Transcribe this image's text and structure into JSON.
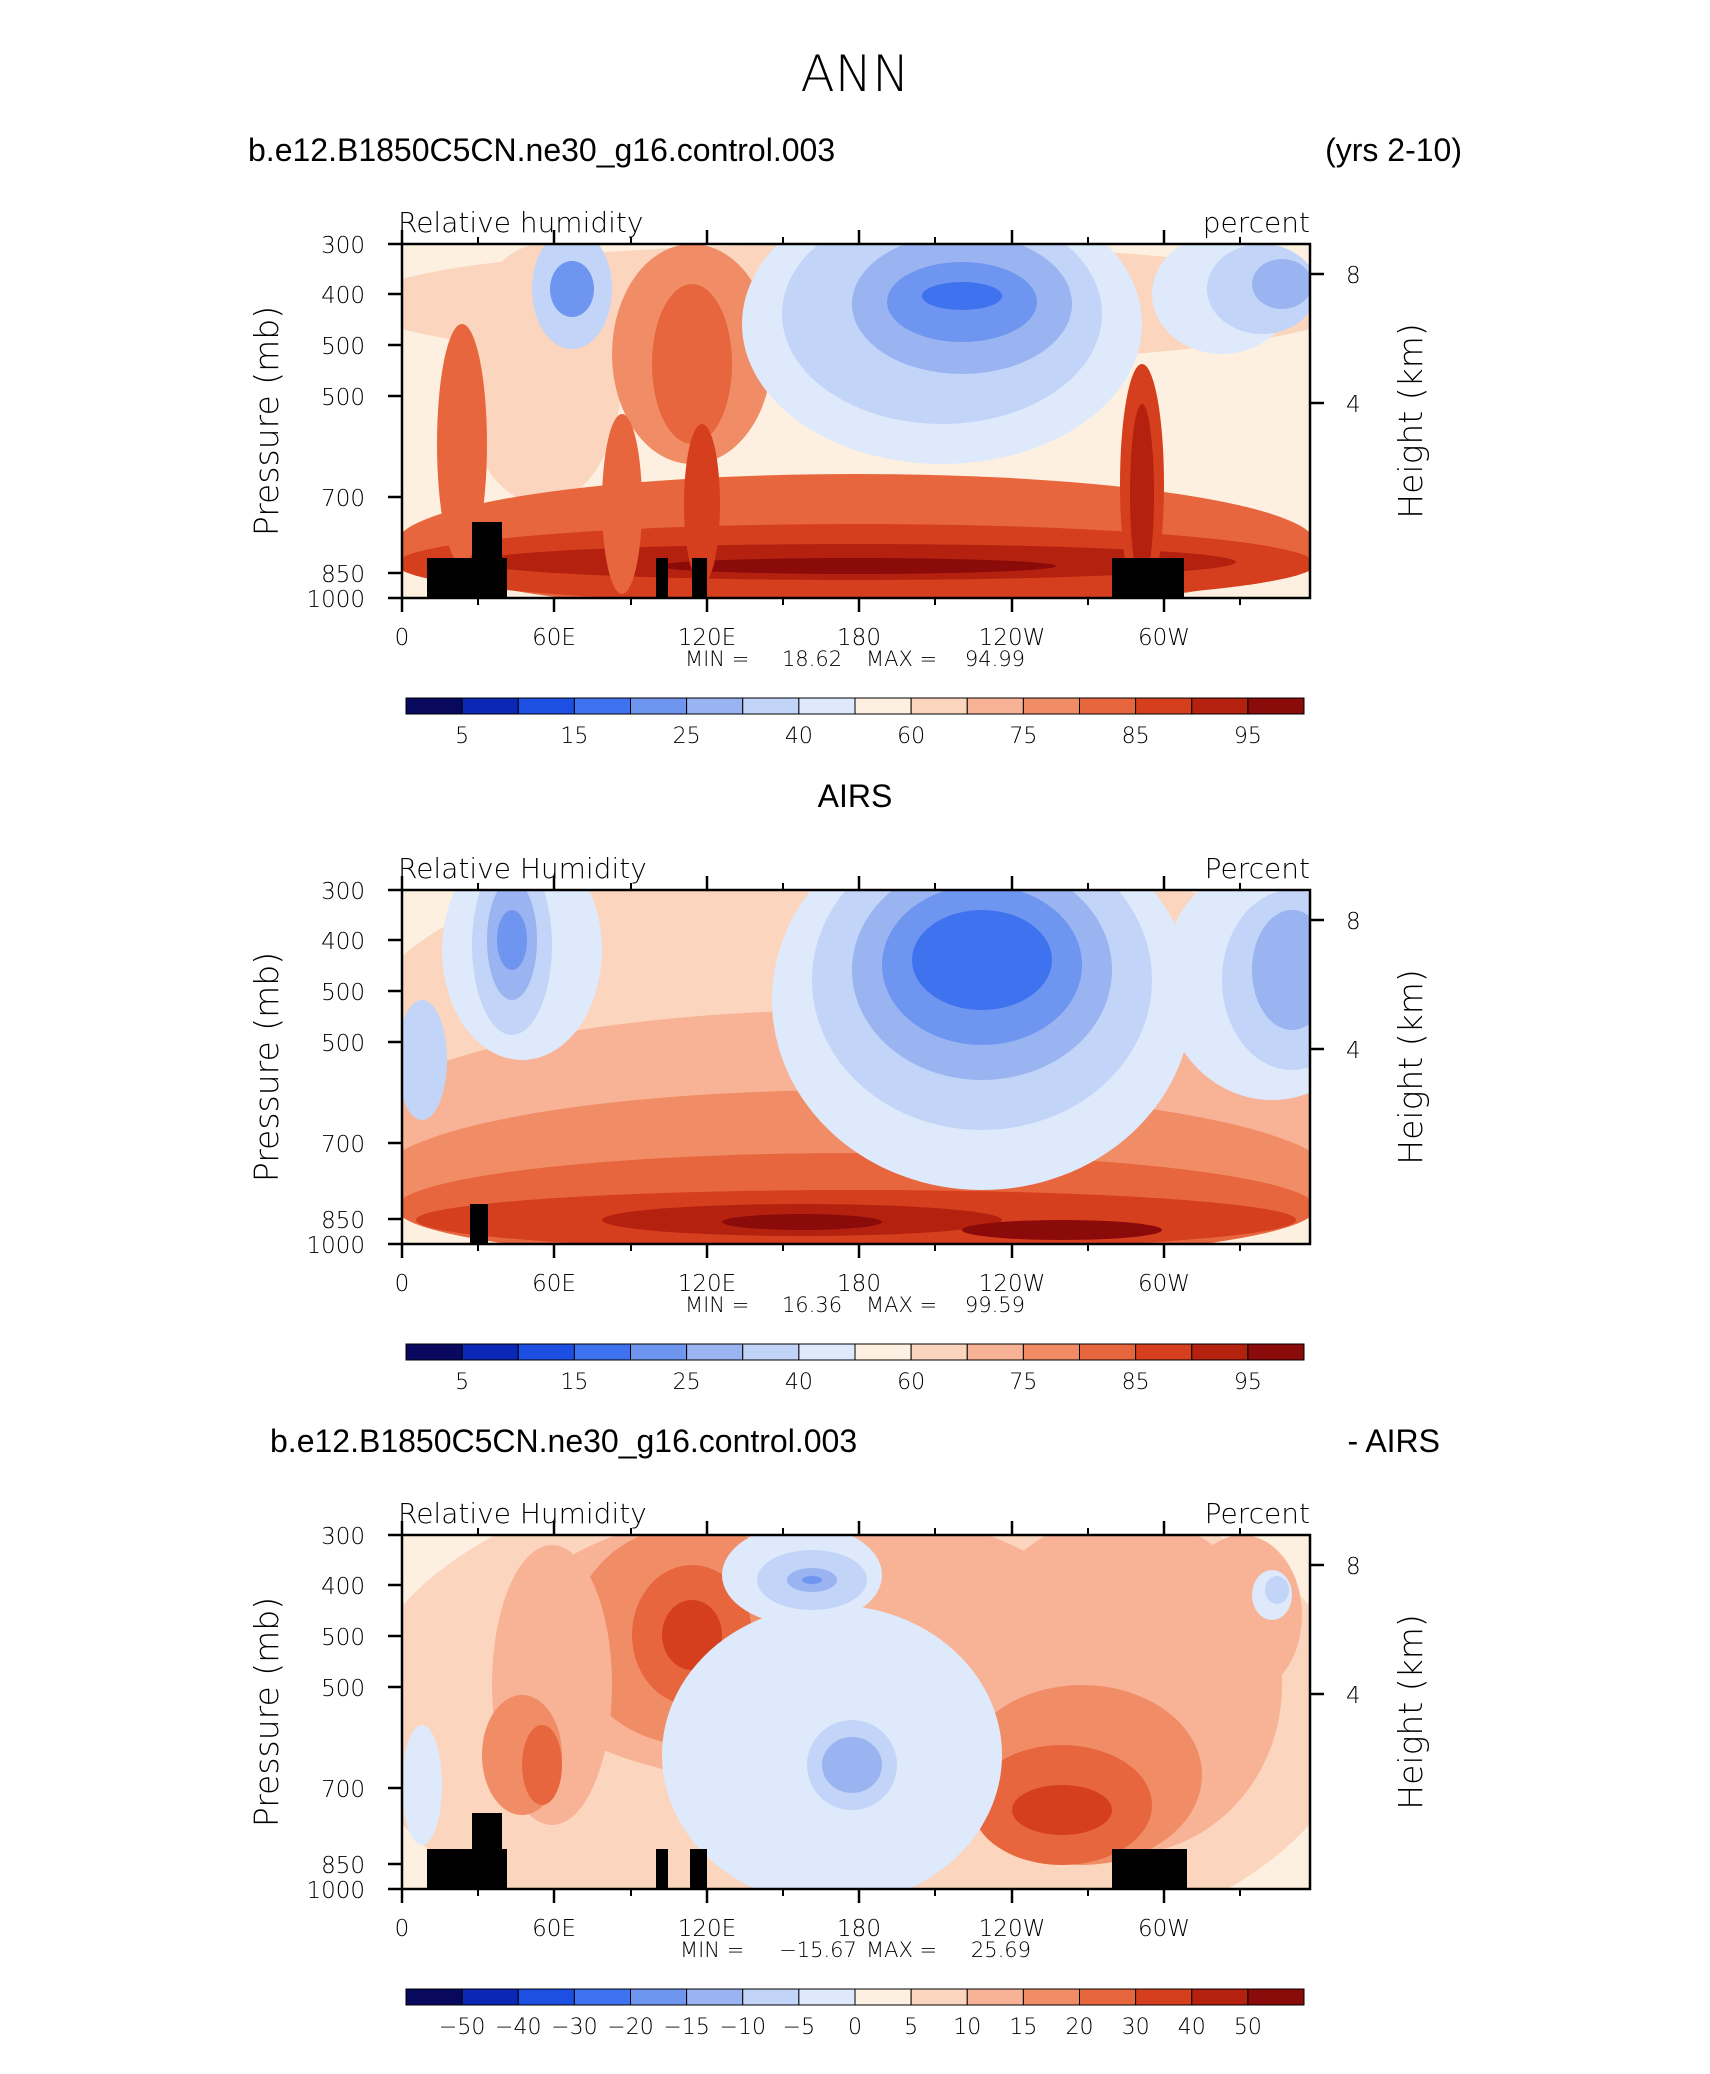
{
  "figure_title": "ANN",
  "colors": {
    "seq": [
      "#08085f",
      "#0a28b5",
      "#1c4fe2",
      "#3f72ee",
      "#6e95ef",
      "#9ab4f2",
      "#c2d4f7",
      "#deeafb",
      "#fdf0e0",
      "#fbd5bd",
      "#f8b397",
      "#f08d66",
      "#e8663e",
      "#d53f1e",
      "#b5210f",
      "#8b0a0a"
    ],
    "diff": [
      "#08085f",
      "#0a28b5",
      "#1c4fe2",
      "#3f72ee",
      "#6e95ef",
      "#9ab4f2",
      "#c2d4f7",
      "#deeafb",
      "#fdf0e0",
      "#fbd5bd",
      "#f8b397",
      "#f08d66",
      "#e8663e",
      "#d53f1e",
      "#b5210f",
      "#8b0a0a"
    ]
  },
  "chart_data": [
    {
      "type": "heatmap",
      "header_left": "b.e12.B1850C5CN.ne30_g16.control.003",
      "header_right": "(yrs 2-10)",
      "subtitle_left": "Relative humidity",
      "subtitle_right": "percent",
      "ylabel": "Pressure (mb)",
      "ylabel_right": "Height (km)",
      "x_ticks": [
        "0",
        "60E",
        "120E",
        "180",
        "120W",
        "60W"
      ],
      "y_ticks": [
        "300",
        "400",
        "500",
        "500",
        "700",
        "850",
        "1000"
      ],
      "y2_ticks": [
        "8",
        "4"
      ],
      "min_label": "MIN =",
      "min_value": "18.62",
      "max_label": "MAX =",
      "max_value": "94.99",
      "colorbar_labels": [
        "5",
        "15",
        "25",
        "40",
        "60",
        "75",
        "85",
        "95"
      ],
      "colorbar_levels": [
        0,
        5,
        10,
        15,
        20,
        25,
        30,
        40,
        50,
        60,
        70,
        75,
        80,
        85,
        90,
        95,
        100
      ]
    },
    {
      "type": "heatmap",
      "header_center": "AIRS",
      "subtitle_left": "Relative Humidity",
      "subtitle_right": "Percent",
      "ylabel": "Pressure (mb)",
      "ylabel_right": "Height (km)",
      "x_ticks": [
        "0",
        "60E",
        "120E",
        "180",
        "120W",
        "60W"
      ],
      "y_ticks": [
        "300",
        "400",
        "500",
        "500",
        "700",
        "850",
        "1000"
      ],
      "y2_ticks": [
        "8",
        "4"
      ],
      "min_label": "MIN =",
      "min_value": "16.36",
      "max_label": "MAX =",
      "max_value": "99.59",
      "colorbar_labels": [
        "5",
        "15",
        "25",
        "40",
        "60",
        "75",
        "85",
        "95"
      ]
    },
    {
      "type": "heatmap",
      "header_left": "b.e12.B1850C5CN.ne30_g16.control.003",
      "header_right": "- AIRS",
      "subtitle_left": "Relative Humidity",
      "subtitle_right": "Percent",
      "ylabel": "Pressure (mb)",
      "ylabel_right": "Height (km)",
      "x_ticks": [
        "0",
        "60E",
        "120E",
        "180",
        "120W",
        "60W"
      ],
      "y_ticks": [
        "300",
        "400",
        "500",
        "500",
        "700",
        "850",
        "1000"
      ],
      "y2_ticks": [
        "8",
        "4"
      ],
      "min_label": "MIN =",
      "min_value": "−15.67",
      "max_label": "MAX =",
      "max_value": "25.69",
      "colorbar_labels": [
        "−50",
        "−40",
        "−30",
        "−20",
        "−15",
        "−10",
        "−5",
        "0",
        "5",
        "10",
        "15",
        "20",
        "30",
        "40",
        "50"
      ]
    }
  ]
}
